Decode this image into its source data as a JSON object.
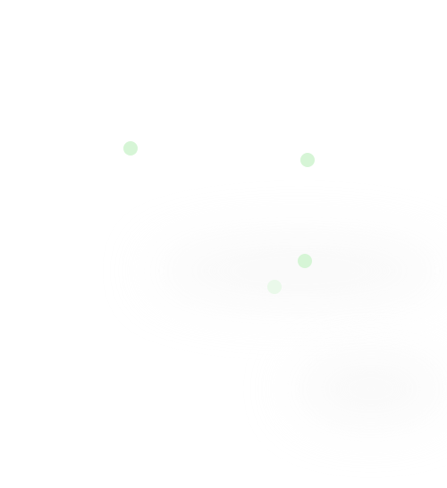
{
  "dots": [
    {
      "name": "dot-1",
      "color": "#d6f5d6",
      "opacity": 1
    },
    {
      "name": "dot-2",
      "color": "#d6f5d6",
      "opacity": 1
    },
    {
      "name": "dot-3",
      "color": "#d6f5d6",
      "opacity": 1
    },
    {
      "name": "dot-4",
      "color": "#e6f8e6",
      "opacity": 0.85
    }
  ]
}
